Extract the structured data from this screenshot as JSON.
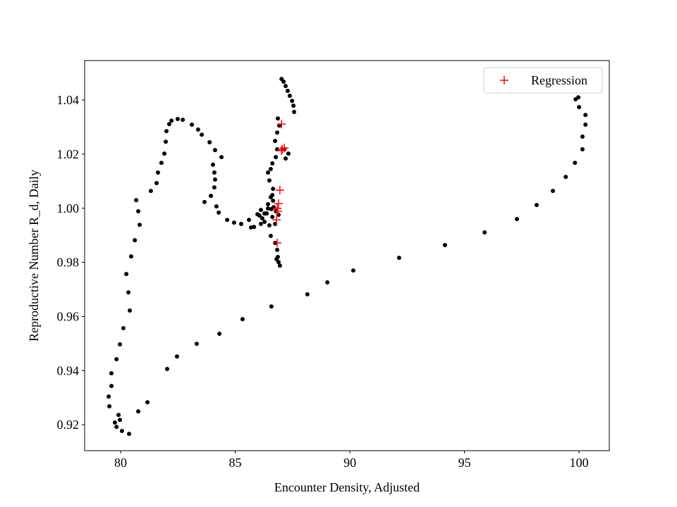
{
  "chart_data": {
    "type": "scatter",
    "xlabel": "Encounter Density, Adjusted",
    "ylabel": "Reproductive Number R_d, Daily",
    "xlim": [
      78.43,
      101.32
    ],
    "ylim": [
      0.9104,
      1.0546
    ],
    "xticks": [
      80,
      85,
      90,
      95,
      100
    ],
    "yticks": [
      0.92,
      0.94,
      0.96,
      0.98,
      {
        "value": 1,
        "label": "1.00"
      },
      1.02,
      1.04
    ],
    "legend": "upper right",
    "series": [
      {
        "color": "#000000",
        "marker": "circle",
        "x": [
          80.37,
          80.77,
          81.17,
          82.03,
          82.46,
          83.32,
          84.31,
          85.32,
          86.58,
          88.15,
          89.02,
          90.15,
          92.15,
          94.15,
          95.88,
          97.29,
          98.15,
          98.86,
          99.42,
          99.82,
          100.15,
          100.15,
          100.28,
          100.28,
          100.0,
          99.85,
          99.97,
          80.06,
          79.82,
          79.75,
          79.97,
          79.91,
          79.51,
          79.48,
          79.6,
          79.6,
          79.82,
          79.97,
          80.12,
          80.4,
          80.34,
          80.25,
          80.46,
          80.62,
          80.83,
          80.77,
          80.68,
          81.32,
          81.57,
          81.63,
          81.78,
          81.91,
          81.97,
          82.0,
          82.12,
          82.22,
          82.49,
          82.71,
          83.11,
          83.38,
          83.54,
          83.88,
          84.12,
          84.4,
          84.03,
          84.09,
          84.12,
          84.09,
          83.94,
          83.66,
          84.18,
          84.28,
          84.65,
          84.95,
          85.26,
          85.6,
          85.97,
          86.28,
          86.49,
          86.74,
          86.62,
          86.58,
          86.65,
          86.62,
          86.65,
          86.49,
          86.43,
          86.55,
          86.62,
          86.77,
          86.83,
          86.74,
          86.83,
          86.92,
          86.86,
          87.57,
          87.54,
          87.48,
          87.38,
          87.29,
          87.2,
          87.11,
          87.02,
          87.15,
          87.2,
          87.32,
          86.74,
          86.83,
          86.86,
          86.89,
          86.95,
          86.8,
          86.55,
          85.82,
          86.12,
          86.18,
          86.37,
          86.43,
          86.68,
          86.77,
          86.89,
          86.28,
          86.06,
          85.69,
          86.43,
          86.55,
          86.12
        ],
        "values": [
          0.9166,
          0.9249,
          0.9283,
          0.9406,
          0.9452,
          0.9499,
          0.9536,
          0.959,
          0.9637,
          0.9682,
          0.9726,
          0.977,
          0.9817,
          0.9864,
          0.9911,
          0.996,
          1.0012,
          1.0064,
          1.0116,
          1.0168,
          1.0218,
          1.0265,
          1.0309,
          1.0345,
          1.0374,
          1.0403,
          1.041,
          0.9177,
          0.9192,
          0.9208,
          0.9218,
          0.9236,
          0.9268,
          0.9304,
          0.9343,
          0.939,
          0.9442,
          0.9497,
          0.9557,
          0.9622,
          0.9689,
          0.9757,
          0.9822,
          0.9882,
          0.9939,
          0.9989,
          1.003,
          1.0064,
          1.0093,
          1.0132,
          1.0168,
          1.0202,
          1.0246,
          1.0285,
          1.0311,
          1.0324,
          1.033,
          1.0327,
          1.0309,
          1.0291,
          1.0272,
          1.0244,
          1.0215,
          1.0189,
          1.0161,
          1.0132,
          1.0106,
          1.0077,
          1.0046,
          1.0023,
          1.0007,
          0.9984,
          0.9957,
          0.9947,
          0.9942,
          0.9957,
          0.9978,
          0.9981,
          0.9937,
          0.9942,
          0.9968,
          0.9997,
          1.0028,
          1.0049,
          1.0072,
          1.0103,
          1.0132,
          1.0145,
          1.0166,
          1.0189,
          1.0218,
          1.0249,
          1.028,
          1.0306,
          1.0332,
          1.0356,
          1.0379,
          1.0397,
          1.0416,
          1.0434,
          1.0452,
          1.0468,
          1.0478,
          1.0218,
          1.0184,
          1.0202,
          0.9872,
          0.9846,
          0.982,
          0.9801,
          0.9788,
          0.9812,
          0.9898,
          0.9931,
          0.9942,
          0.9963,
          0.9981,
          0.9999,
          1.0004,
          0.9989,
          0.9976,
          0.995,
          0.9973,
          0.9929,
          1.0015,
          1.0041,
          0.9994
        ]
      },
      {
        "name": "Regression",
        "color": "#ff0000",
        "marker": "plus",
        "x": [
          87.02,
          87.05,
          87.14,
          87.02,
          86.95,
          86.89,
          86.83,
          86.86,
          86.8,
          86.83
        ],
        "values": [
          1.0311,
          1.0218,
          1.0223,
          1.0213,
          1.0067,
          1.0017,
          0.9999,
          0.9989,
          0.9957,
          0.9872
        ]
      }
    ]
  }
}
